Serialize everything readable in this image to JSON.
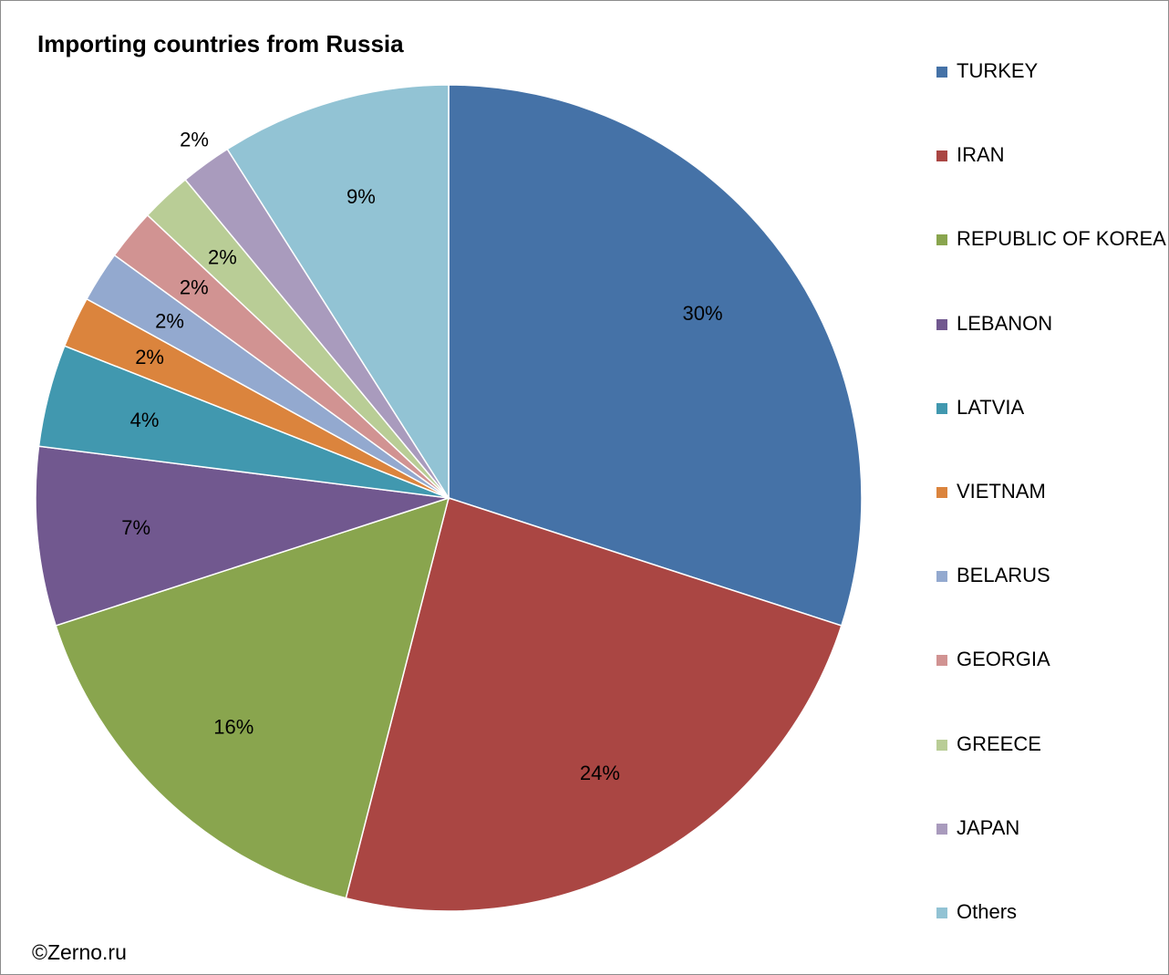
{
  "chart_data": {
    "type": "pie",
    "title": "Importing countries from Russia",
    "slices": [
      {
        "name": "TURKEY",
        "value": 30,
        "label": "30%",
        "color": "#4572a7"
      },
      {
        "name": "IRAN",
        "value": 24,
        "label": "24%",
        "color": "#aa4643"
      },
      {
        "name": "REPUBLIC OF KOREA",
        "value": 16,
        "label": "16%",
        "color": "#89a54e"
      },
      {
        "name": "LEBANON",
        "value": 7,
        "label": "7%",
        "color": "#71588f"
      },
      {
        "name": "LATVIA",
        "value": 4,
        "label": "4%",
        "color": "#4198af"
      },
      {
        "name": "VIETNAM",
        "value": 2,
        "label": "2%",
        "color": "#db843d"
      },
      {
        "name": "BELARUS",
        "value": 2,
        "label": "2%",
        "color": "#93a9cf"
      },
      {
        "name": "GEORGIA",
        "value": 2,
        "label": "2%",
        "color": "#d19392"
      },
      {
        "name": "GREECE",
        "value": 2,
        "label": "2%",
        "color": "#b9cd96"
      },
      {
        "name": "JAPAN",
        "value": 2,
        "label": "2%",
        "color": "#a99bbd"
      },
      {
        "name": "Others",
        "value": 9,
        "label": "9%",
        "color": "#92c3d4"
      }
    ],
    "legend_position": "right"
  },
  "credit": "©Zerno.ru"
}
